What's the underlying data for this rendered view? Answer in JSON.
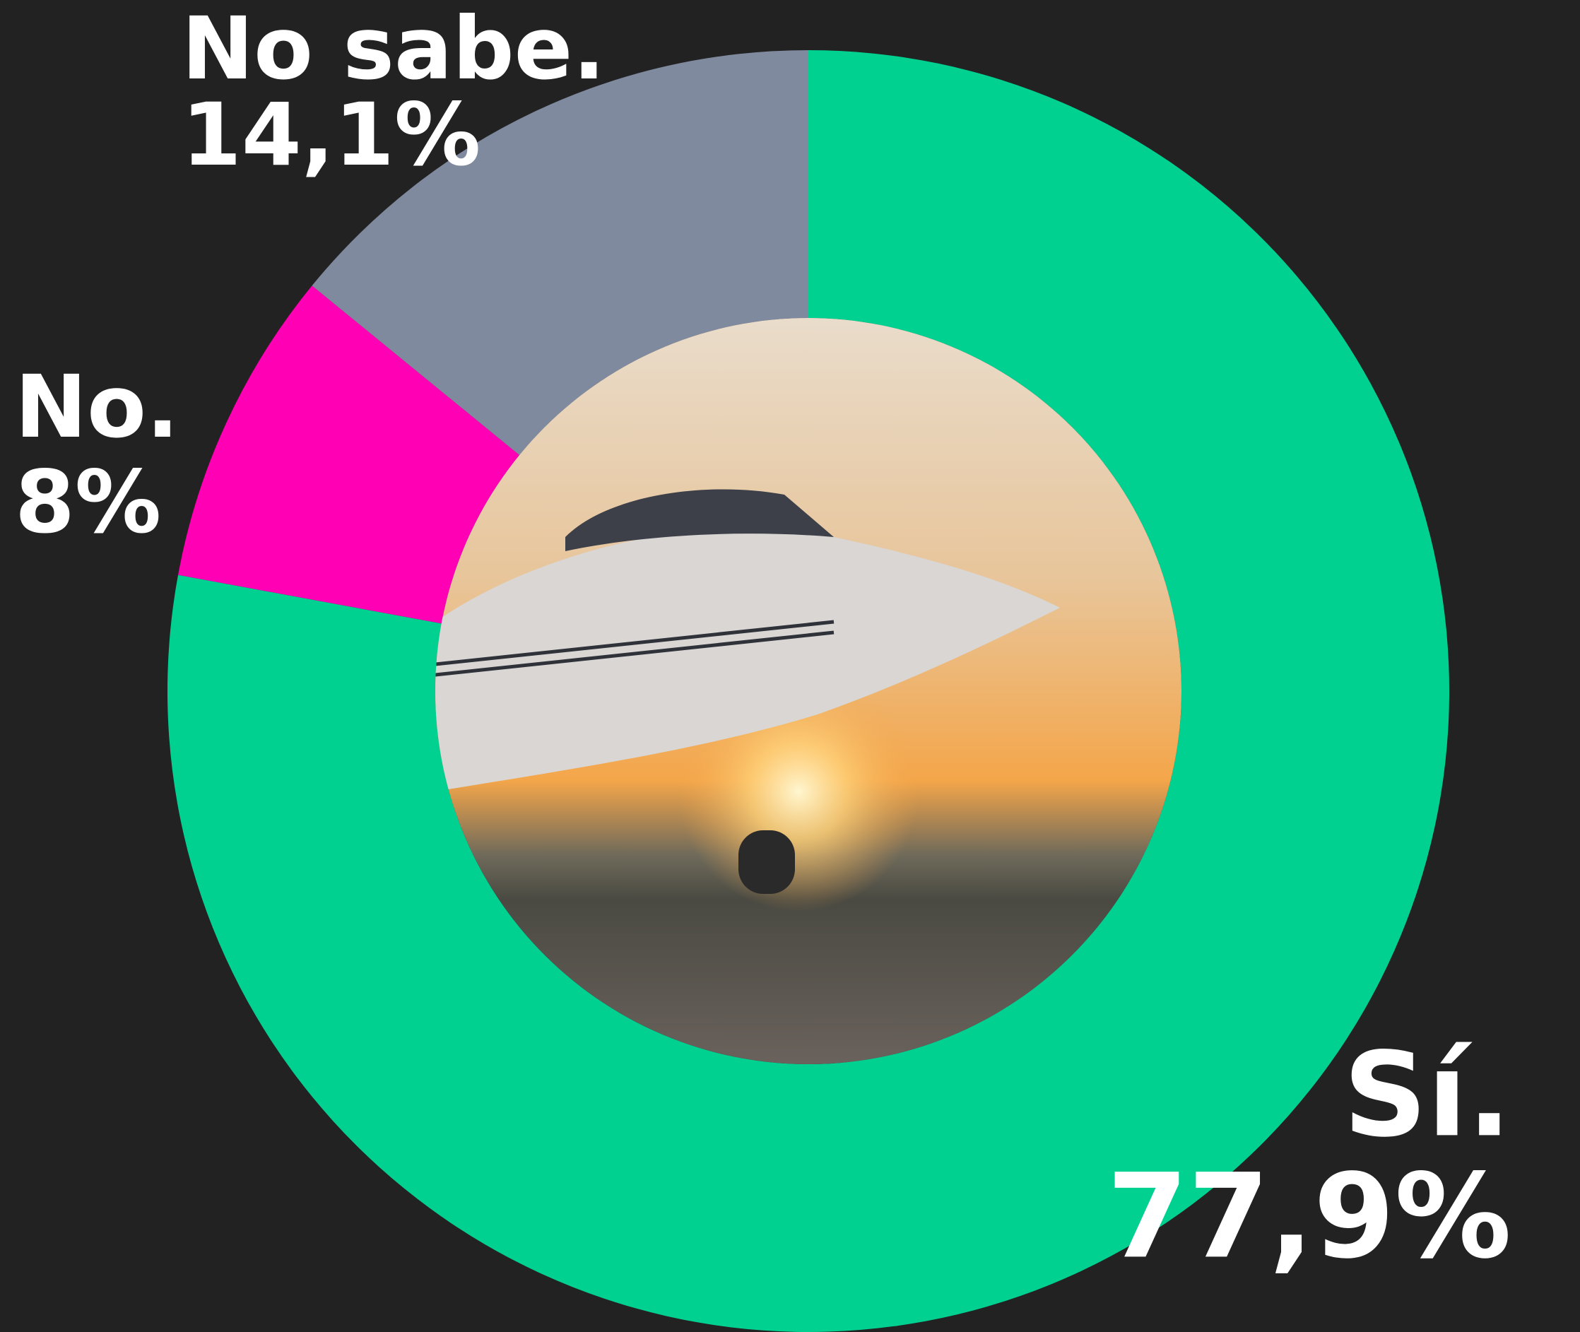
{
  "chart_data": {
    "type": "donut",
    "categories": [
      "Sí.",
      "No.",
      "No sabe."
    ],
    "values": [
      77.9,
      8,
      14.1
    ],
    "value_labels": [
      "77,9%",
      "8%",
      "14,1%"
    ],
    "colors": [
      "#00d191",
      "#ff00b4",
      "#7f8a9f"
    ]
  }
}
